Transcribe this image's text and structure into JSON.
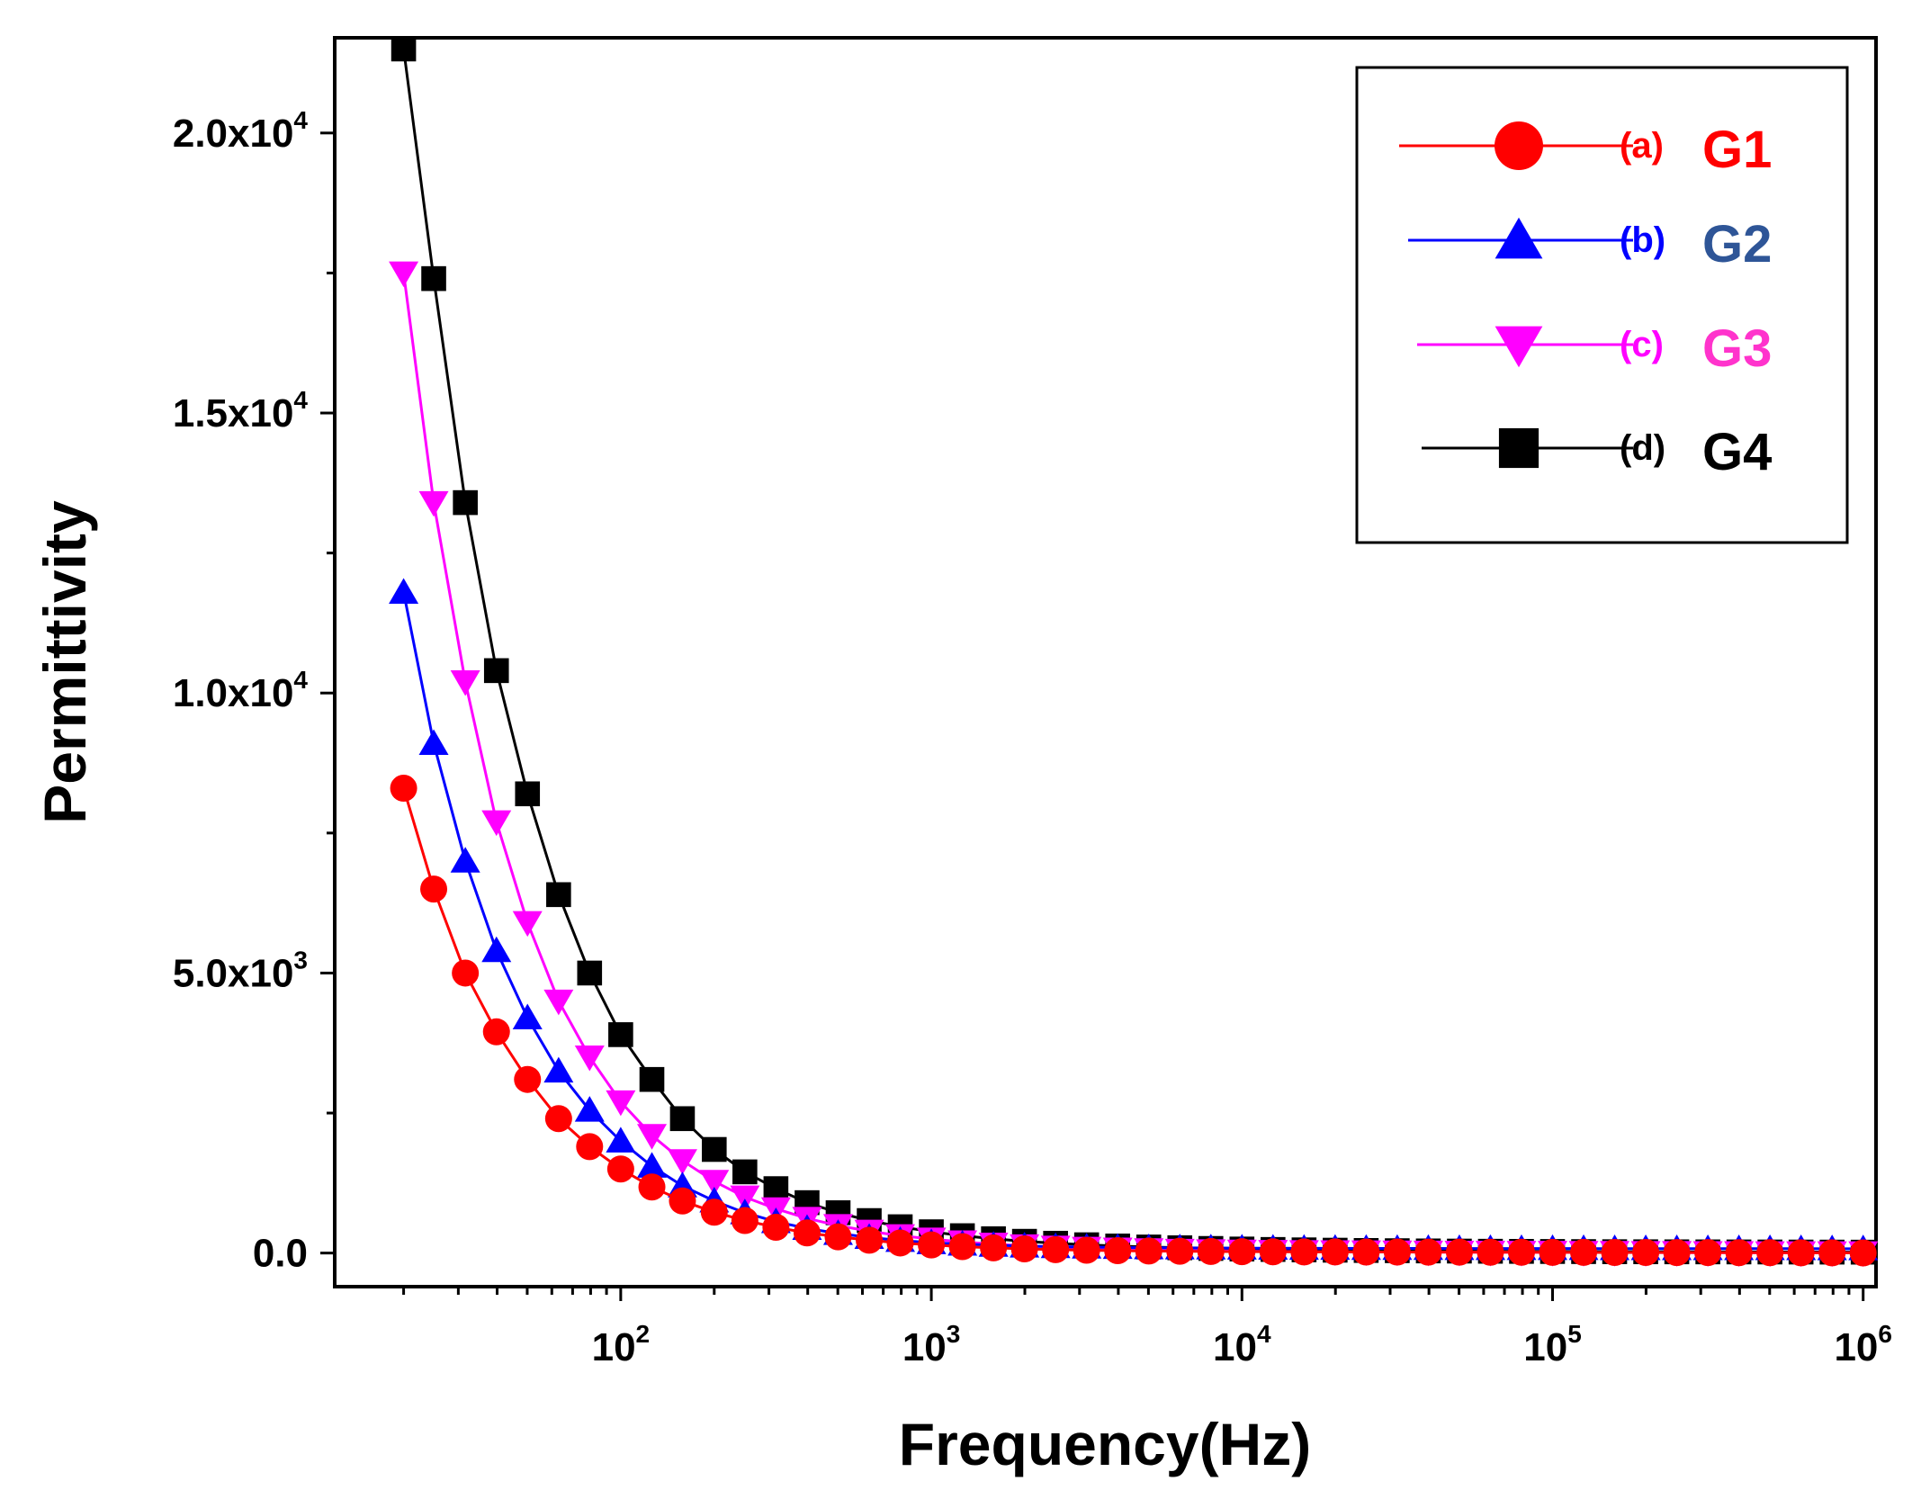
{
  "chart_data": {
    "type": "line",
    "xscale": "log",
    "xlabel": "Frequency(Hz)",
    "ylabel": "Permittivity",
    "xlim": [
      12,
      1100000
    ],
    "ylim": [
      -600,
      21700
    ],
    "x_ticks": [
      {
        "value": 100,
        "base": "10",
        "exp": "2"
      },
      {
        "value": 1000,
        "base": "10",
        "exp": "3"
      },
      {
        "value": 10000,
        "base": "10",
        "exp": "4"
      },
      {
        "value": 100000,
        "base": "10",
        "exp": "5"
      },
      {
        "value": 1000000,
        "base": "10",
        "exp": "6"
      }
    ],
    "y_ticks": [
      {
        "value": 0,
        "label": "0.0",
        "exp": ""
      },
      {
        "value": 5000,
        "label": "5.0x10",
        "exp": "3"
      },
      {
        "value": 10000,
        "label": "1.0x10",
        "exp": "4"
      },
      {
        "value": 15000,
        "label": "1.5x10",
        "exp": "4"
      },
      {
        "value": 20000,
        "label": "2.0x10",
        "exp": "4"
      }
    ],
    "x": [
      20,
      25,
      31.6,
      39.8,
      50.1,
      63.1,
      79.4,
      100,
      126,
      158,
      200,
      251,
      316,
      398,
      501,
      631,
      794,
      1000,
      1259,
      1585,
      1995,
      2512,
      3162,
      3981,
      5012,
      6310,
      7943,
      10000,
      12589,
      15849,
      19953,
      25119,
      31623,
      39811,
      50119,
      63096,
      79433,
      100000,
      125893,
      158489,
      199526,
      251189,
      316228,
      398107,
      501187,
      630957,
      794328,
      1000000
    ],
    "series": [
      {
        "name": "G1",
        "letter": "(a)",
        "color": "#ff0000",
        "name_color": "#ff0000",
        "marker": "circle",
        "values": [
          8300,
          6500,
          5000,
          3950,
          3100,
          2400,
          1900,
          1500,
          1180,
          930,
          730,
          580,
          460,
          360,
          290,
          230,
          180,
          145,
          115,
          92,
          75,
          60,
          50,
          42,
          36,
          32,
          28,
          25,
          23,
          21,
          20,
          19,
          18,
          17,
          16,
          15,
          14,
          13,
          12,
          11,
          10,
          9,
          8,
          7,
          6,
          5,
          4,
          3
        ]
      },
      {
        "name": "G2",
        "letter": "(b)",
        "color": "#0000ff",
        "name_color": "#2e5597",
        "marker": "triangle-up",
        "values": [
          11800,
          9100,
          7000,
          5400,
          4200,
          3250,
          2550,
          2000,
          1550,
          1200,
          930,
          720,
          560,
          440,
          350,
          280,
          225,
          185,
          160,
          140,
          125,
          115,
          107,
          100,
          95,
          92,
          90,
          88,
          86,
          85,
          84,
          83,
          82,
          82,
          81,
          81,
          80,
          80,
          80,
          79,
          79,
          79,
          78,
          78,
          78,
          78,
          77,
          77
        ]
      },
      {
        "name": "G3",
        "letter": "(c)",
        "color": "#ff00ff",
        "name_color": "#ff33cc",
        "marker": "triangle-down",
        "values": [
          17500,
          13400,
          10200,
          7700,
          5900,
          4500,
          3500,
          2700,
          2100,
          1650,
          1280,
          1000,
          790,
          620,
          490,
          390,
          310,
          250,
          200,
          160,
          130,
          105,
          85,
          70,
          58,
          48,
          40,
          34,
          29,
          25,
          22,
          20,
          18,
          16,
          15,
          14,
          13,
          12,
          11,
          10,
          9,
          8,
          7,
          6,
          5,
          5,
          4,
          4
        ]
      },
      {
        "name": "G4",
        "letter": "(d)",
        "color": "#000000",
        "name_color": "#000000",
        "marker": "square",
        "values": [
          21500,
          17400,
          13400,
          10400,
          8200,
          6400,
          5000,
          3900,
          3100,
          2400,
          1850,
          1450,
          1150,
          900,
          720,
          580,
          470,
          380,
          310,
          255,
          210,
          175,
          148,
          126,
          108,
          94,
          82,
          72,
          64,
          57,
          51,
          46,
          42,
          38,
          35,
          32,
          30,
          28,
          26,
          24,
          23,
          22,
          21,
          20,
          19,
          18,
          17,
          16
        ]
      }
    ],
    "legend_position": "top-right",
    "grid": false
  }
}
